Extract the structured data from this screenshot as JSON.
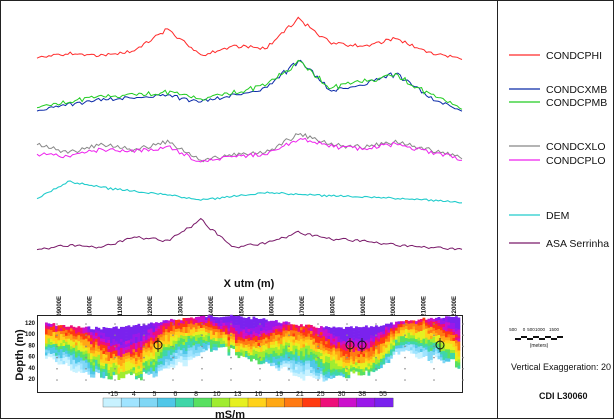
{
  "profile_axis": {
    "xlabel": "X utm (m)",
    "ticks": [
      "209000E",
      "210000E",
      "211000E",
      "212000E",
      "213000E",
      "214000E",
      "215000E",
      "216000E",
      "217000E",
      "218000E",
      "219000E",
      "220000E",
      "221000E",
      "222000E"
    ]
  },
  "legend": [
    {
      "name": "CONDCPHI",
      "color": "#ff2a2a"
    },
    {
      "name": "CONDCXMB",
      "color": "#0a2aa8"
    },
    {
      "name": "CONDCPMB",
      "color": "#22cc22"
    },
    {
      "name": "CONDCXLO",
      "color": "#888888"
    },
    {
      "name": "CONDCPLO",
      "color": "#ee22ee"
    },
    {
      "name": "DEM",
      "color": "#22cccc"
    },
    {
      "name": "ASA Serrinha",
      "color": "#7a1a6a"
    }
  ],
  "section": {
    "ylabel": "Depth (m)",
    "yticks": [
      "120",
      "100",
      "80",
      "60",
      "40",
      "20"
    ],
    "colorbar_labels": [
      "-15",
      "4",
      "5",
      "6",
      "8",
      "10",
      "13",
      "16",
      "19",
      "21",
      "25",
      "30",
      "38",
      "55"
    ],
    "colorbar_colors": [
      "#c8f2ff",
      "#a0e4ff",
      "#7fd7f5",
      "#4fc7e8",
      "#3fd6a8",
      "#58e060",
      "#a0ec30",
      "#e6f020",
      "#ffd21a",
      "#ffa814",
      "#ff7a12",
      "#ff3a10",
      "#ee0e7a",
      "#cc10cc",
      "#9a18ea",
      "#7a22ee"
    ],
    "colorbar_unit": "mS/m"
  },
  "scale_bar": {
    "labels": [
      "500",
      "0",
      "500",
      "1000",
      "1500"
    ],
    "unit": "(meters)"
  },
  "vertical_exaggeration": "Vertical Exaggeration: 20",
  "cdi_label": "CDI L30060",
  "chart_data": {
    "type": "line",
    "xlabel": "X utm (m)",
    "x": [
      "209000E",
      "210000E",
      "211000E",
      "212000E",
      "213000E",
      "214000E",
      "215000E",
      "216000E",
      "217000E",
      "218000E",
      "219000E",
      "220000E",
      "221000E",
      "222000E"
    ],
    "series": [
      {
        "name": "CONDCPHI",
        "values": [
          4,
          6,
          5,
          7,
          16,
          5,
          9,
          8,
          20,
          10,
          9,
          12,
          6,
          4
        ]
      },
      {
        "name": "CONDCXMB",
        "values": [
          5,
          8,
          10,
          11,
          12,
          9,
          12,
          15,
          28,
          14,
          17,
          22,
          11,
          5
        ]
      },
      {
        "name": "CONDCPMB",
        "values": [
          6,
          9,
          11,
          12,
          13,
          10,
          13,
          16,
          27,
          15,
          18,
          21,
          12,
          6
        ]
      },
      {
        "name": "CONDCXLO",
        "values": [
          12,
          9,
          12,
          10,
          13,
          6,
          8,
          9,
          16,
          12,
          11,
          13,
          10,
          7
        ]
      },
      {
        "name": "CONDCPLO",
        "values": [
          8,
          7,
          10,
          9,
          11,
          5,
          7,
          8,
          14,
          11,
          10,
          12,
          9,
          6
        ]
      },
      {
        "name": "DEM",
        "values": [
          42,
          66,
          58,
          52,
          47,
          40,
          45,
          50,
          48,
          46,
          44,
          42,
          40,
          36
        ]
      },
      {
        "name": "ASA Serrinha",
        "values": [
          4,
          6,
          5,
          10,
          8,
          18,
          5,
          7,
          12,
          9,
          8,
          6,
          5,
          4
        ]
      }
    ],
    "colorbar": {
      "unit": "mS/m",
      "labels": [
        "-15",
        "4",
        "5",
        "6",
        "8",
        "10",
        "13",
        "16",
        "19",
        "21",
        "25",
        "30",
        "38",
        "55"
      ]
    },
    "depth_axis": {
      "label": "Depth (m)",
      "ticks": [
        120,
        100,
        80,
        60,
        40,
        20
      ]
    }
  }
}
